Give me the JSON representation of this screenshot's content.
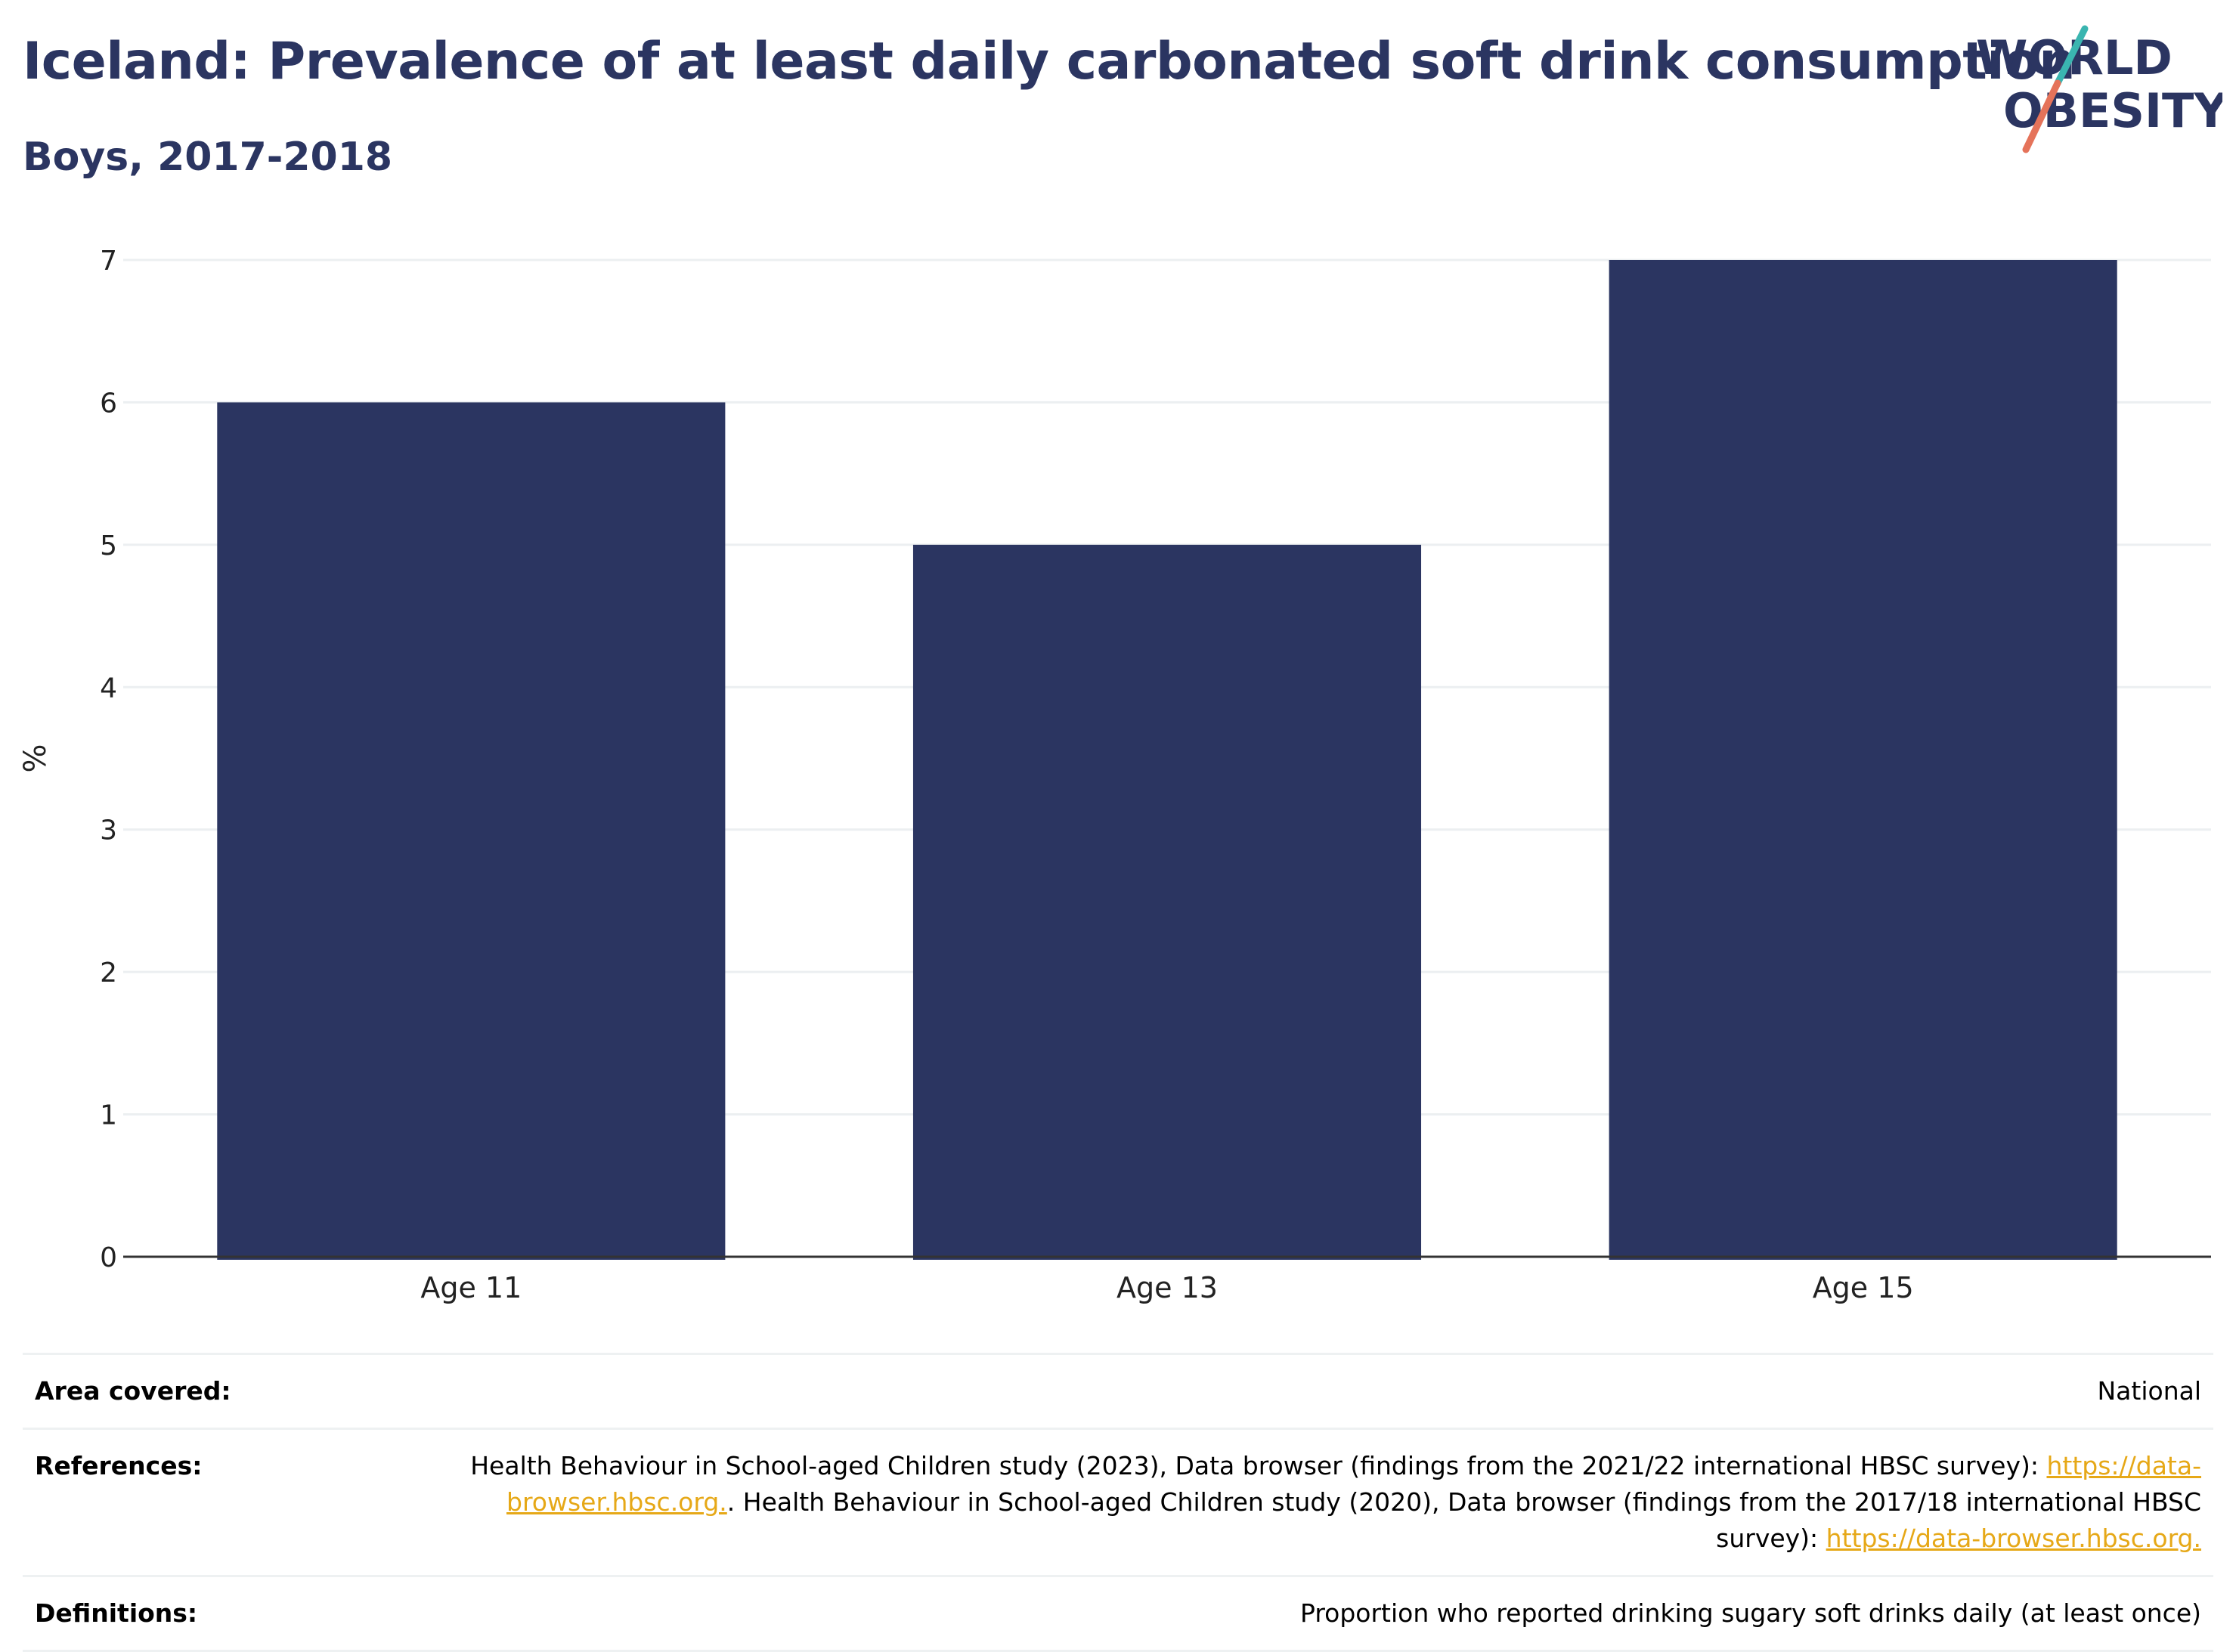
{
  "header": {
    "title": "Iceland: Prevalence of at least daily carbonated soft drink consumption",
    "subtitle": "Boys, 2017-2018"
  },
  "logo": {
    "line1": "WORLD",
    "line2": "OBESITY",
    "accent_colors": [
      "#3ab5b0",
      "#e5735a"
    ]
  },
  "chart_data": {
    "type": "bar",
    "title": "Iceland: Prevalence of at least daily carbonated soft drink consumption",
    "subtitle": "Boys, 2017-2018",
    "categories": [
      "Age 11",
      "Age 13",
      "Age 15"
    ],
    "values": [
      6,
      5,
      7
    ],
    "ylabel": "%",
    "xlabel": "",
    "ylim": [
      0,
      7
    ],
    "yticks": [
      0,
      1,
      2,
      3,
      4,
      5,
      6,
      7
    ],
    "grid": true,
    "bar_color": "#2b3561"
  },
  "info": {
    "area_label": "Area covered:",
    "area_value": "National",
    "references_label": "References:",
    "ref_text_1": "Health Behaviour in School-aged Children study (2023), Data browser (findings from the 2021/22 international HBSC survey): ",
    "ref_link_1": "https://data-browser.hbsc.org.",
    "ref_text_2": ". Health Behaviour in School-aged Children study (2020), Data browser (findings from the 2017/18 international HBSC survey): ",
    "ref_link_2": "https://data-browser.hbsc.org.",
    "definitions_label": "Definitions:",
    "definitions_value": "Proportion who reported drinking sugary soft drinks daily (at least once)"
  }
}
